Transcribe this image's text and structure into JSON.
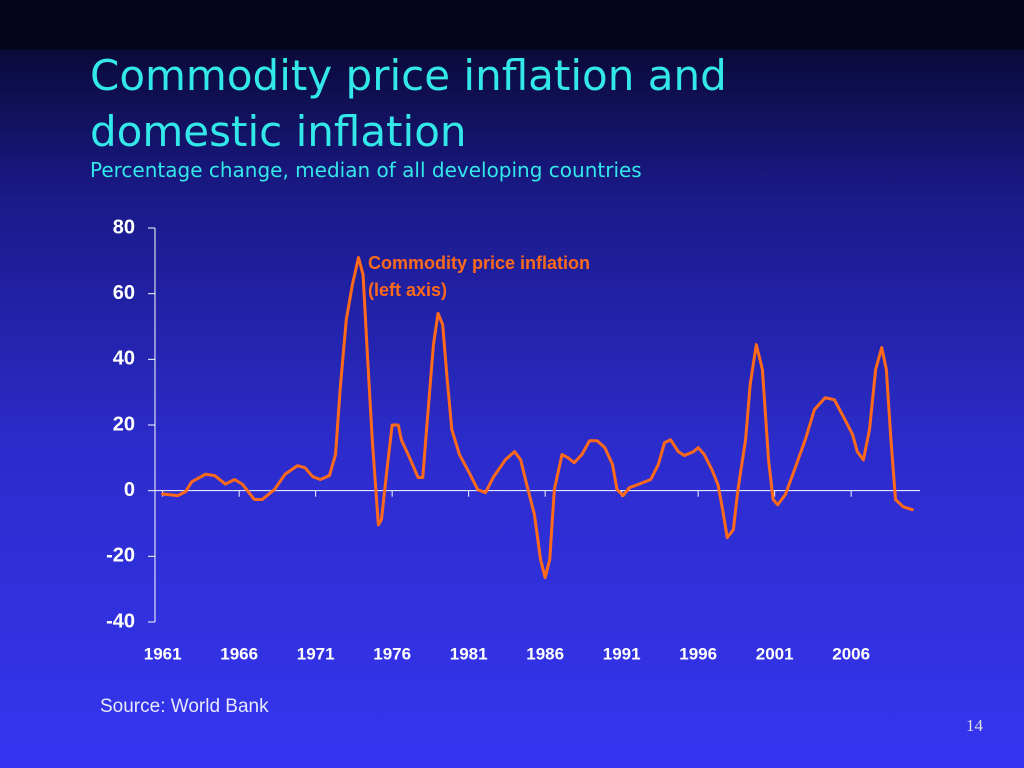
{
  "chart_data": {
    "type": "line",
    "title": "Commodity price inflation and domestic inflation",
    "subtitle": "Percentage change, median of all developing countries",
    "annotation": "(left axis)",
    "xlim": [
      1960.5,
      2010.5
    ],
    "xticks": [
      1961,
      1966,
      1971,
      1976,
      1981,
      1986,
      1991,
      1996,
      2001,
      2006
    ],
    "ylim": [
      -40,
      80
    ],
    "yticks": [
      -40,
      -20,
      0,
      20,
      40,
      60,
      80
    ],
    "series": [
      {
        "name": "Commodity price inflation",
        "color": "#ff6a1a",
        "x": [
          1961.0,
          1962.0,
          1962.5,
          1962.9,
          1963.8,
          1964.4,
          1965.1,
          1965.7,
          1966.2,
          1967.0,
          1967.5,
          1968.3,
          1969.0,
          1969.8,
          1970.3,
          1970.8,
          1971.3,
          1971.9,
          1972.3,
          1972.6,
          1973.0,
          1973.4,
          1973.8,
          1974.1,
          1974.4,
          1974.7,
          1975.1,
          1975.3,
          1975.7,
          1976.0,
          1976.4,
          1976.6,
          1977.2,
          1977.7,
          1978.0,
          1978.3,
          1978.7,
          1979.0,
          1979.3,
          1979.6,
          1979.9,
          1980.4,
          1981.1,
          1981.6,
          1982.1,
          1982.6,
          1983.4,
          1984.0,
          1984.4,
          1984.8,
          1985.3,
          1985.7,
          1986.0,
          1986.3,
          1986.6,
          1987.1,
          1987.5,
          1987.9,
          1988.4,
          1988.9,
          1989.4,
          1989.9,
          1990.4,
          1990.7,
          1991.1,
          1991.5,
          1992.2,
          1992.9,
          1993.4,
          1993.8,
          1994.2,
          1994.7,
          1995.1,
          1995.7,
          1996.0,
          1996.4,
          1996.9,
          1997.3,
          1997.6,
          1997.9,
          1998.3,
          1998.6,
          1999.1,
          1999.4,
          1999.8,
          2000.2,
          2000.6,
          2000.9,
          2001.2,
          2001.7,
          2002.3,
          2003.0,
          2003.6,
          2004.3,
          2004.9,
          2005.6,
          2006.1,
          2006.4,
          2006.8,
          2007.2,
          2007.6,
          2008.0,
          2008.3,
          2008.6,
          2008.9,
          2009.4,
          2010.0
        ],
        "values": [
          -1,
          -1.5,
          -0.3,
          2.7,
          5,
          4.6,
          2,
          3.4,
          2,
          -2.7,
          -2.7,
          0.3,
          5,
          7.6,
          7,
          4.3,
          3.4,
          4.6,
          11,
          30.8,
          52,
          62.7,
          71,
          65.8,
          40,
          15.5,
          -10.4,
          -8.8,
          8,
          20,
          20,
          15.5,
          9.4,
          4,
          4,
          21.6,
          44.5,
          54,
          50.6,
          33.8,
          18.6,
          11,
          4.9,
          0.3,
          -0.6,
          4,
          9.4,
          11.9,
          9.4,
          1.8,
          -7.3,
          -21,
          -26.5,
          -21,
          0.3,
          11,
          10,
          8.5,
          11,
          15.2,
          15.2,
          13.1,
          8,
          0.3,
          -1.5,
          0.9,
          2.1,
          3.4,
          8,
          14.6,
          15.5,
          11.9,
          10.7,
          11.9,
          13.1,
          11,
          6.4,
          1.8,
          -5.8,
          -14.3,
          -11.9,
          0.3,
          15.5,
          32.3,
          44.5,
          36.9,
          9.4,
          -2.7,
          -4.3,
          -1.2,
          6.4,
          15.5,
          24.7,
          28.3,
          27.7,
          21.6,
          17,
          11.9,
          9.4,
          18.6,
          36.9,
          43.6,
          36.9,
          15.5,
          -2.7,
          -4.9,
          -5.8
        ]
      }
    ]
  },
  "footer": {
    "source": "Source: World Bank",
    "page_number": "14"
  }
}
